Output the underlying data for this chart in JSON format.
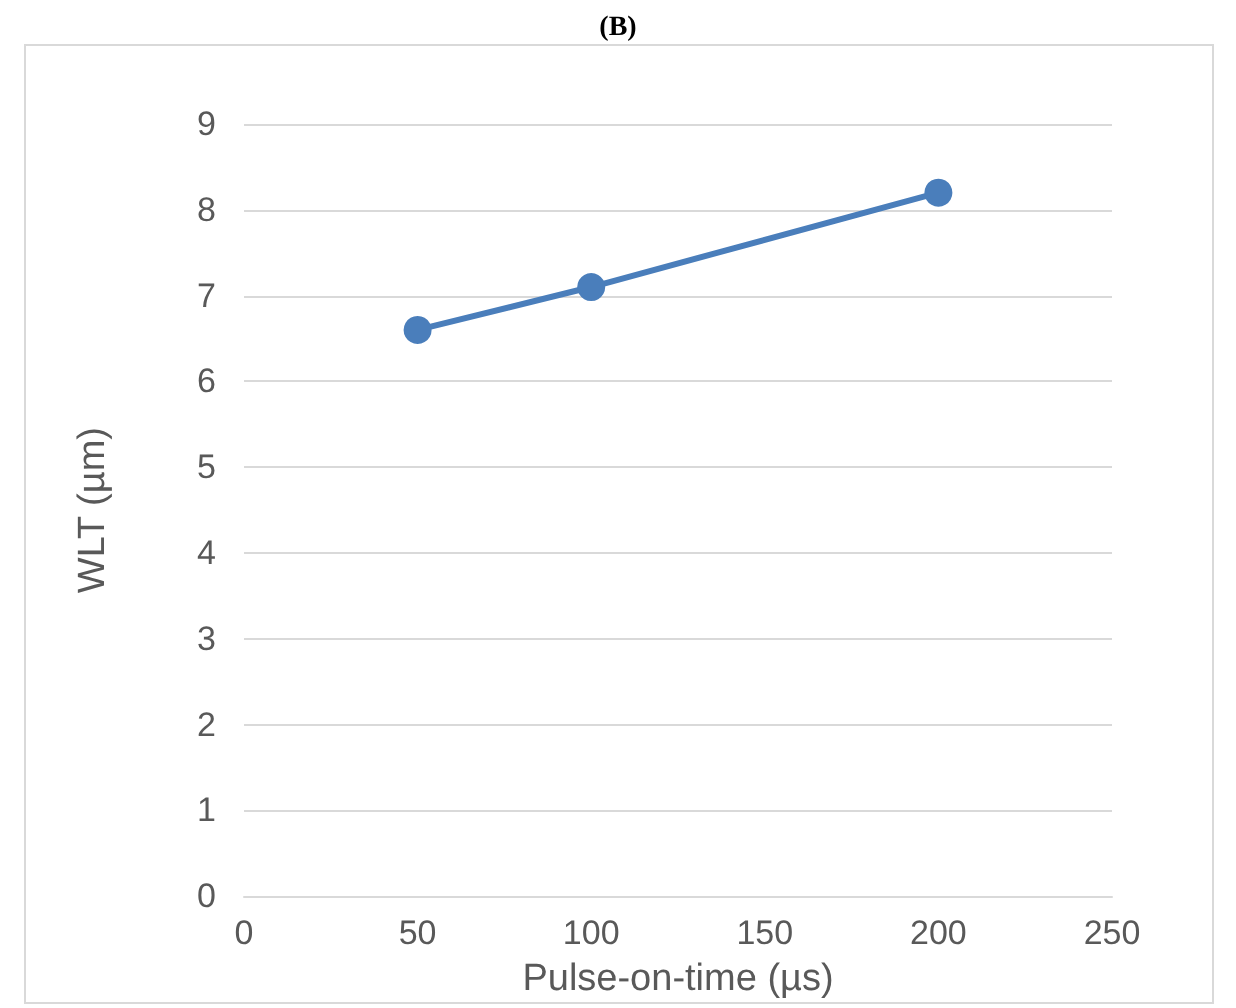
{
  "chart_data": {
    "type": "line",
    "title": "(B)",
    "xlabel": "Pulse-on-time (µs)",
    "ylabel": "WLT (µm)",
    "x": [
      50,
      100,
      200
    ],
    "series": [
      {
        "color": "#4a7ebb",
        "values": [
          6.6,
          7.1,
          8.2
        ]
      }
    ],
    "xlim": [
      0,
      250
    ],
    "xticks": [
      0,
      50,
      100,
      150,
      200,
      250
    ],
    "ylim": [
      0,
      9
    ],
    "yticks": [
      0,
      1,
      2,
      3,
      4,
      5,
      6,
      7,
      8,
      9
    ],
    "grid": "y",
    "marker": "circle",
    "line_style": "solid"
  }
}
